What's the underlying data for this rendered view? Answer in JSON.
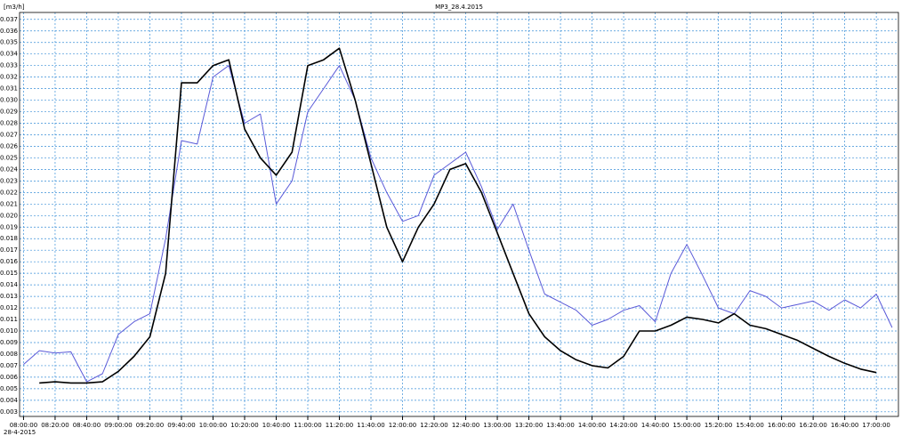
{
  "chart_data": {
    "type": "line",
    "title": "MP3_28.4.2015",
    "y_label": "[m3/h]",
    "date_label": "28-4-2015",
    "x": [
      "08:00:00",
      "08:10:00",
      "08:20:00",
      "08:30:00",
      "08:40:00",
      "08:50:00",
      "09:00:00",
      "09:10:00",
      "09:20:00",
      "09:30:00",
      "09:40:00",
      "09:50:00",
      "10:00:00",
      "10:10:00",
      "10:20:00",
      "10:30:00",
      "10:40:00",
      "10:50:00",
      "11:00:00",
      "11:10:00",
      "11:20:00",
      "11:30:00",
      "11:40:00",
      "11:50:00",
      "12:00:00",
      "12:10:00",
      "12:20:00",
      "12:30:00",
      "12:40:00",
      "12:50:00",
      "13:00:00",
      "13:10:00",
      "13:20:00",
      "13:30:00",
      "13:40:00",
      "13:50:00",
      "14:00:00",
      "14:10:00",
      "14:20:00",
      "14:30:00",
      "14:40:00",
      "14:50:00",
      "15:00:00",
      "15:10:00",
      "15:20:00",
      "15:30:00",
      "15:40:00",
      "15:50:00",
      "16:00:00",
      "16:10:00",
      "16:20:00",
      "16:30:00",
      "16:40:00",
      "16:50:00",
      "17:00:00",
      "17:10:00"
    ],
    "series": [
      {
        "color": "#5a5ad8",
        "values": [
          0.0071,
          0.0083,
          0.0081,
          0.0082,
          0.0056,
          0.0063,
          0.0097,
          0.0108,
          0.0115,
          0.018,
          0.0265,
          0.0262,
          0.032,
          0.033,
          0.028,
          0.0288,
          0.021,
          0.023,
          0.029,
          0.031,
          0.033,
          0.03,
          0.025,
          0.022,
          0.0195,
          0.02,
          0.0235,
          0.0245,
          0.0255,
          0.0225,
          0.0188,
          0.021,
          0.017,
          0.0132,
          0.0125,
          0.0118,
          0.0105,
          0.011,
          0.0118,
          0.0122,
          0.0108,
          0.015,
          0.0175,
          0.0148,
          0.012,
          0.0115,
          0.0135,
          0.013,
          0.012,
          0.0123,
          0.0126,
          0.0118,
          0.0127,
          0.012,
          0.0132,
          0.0103
        ]
      },
      {
        "color": "#000000",
        "values": [
          null,
          0.0055,
          0.0056,
          0.0055,
          0.0055,
          0.0056,
          0.0065,
          0.0078,
          0.0095,
          0.015,
          0.0315,
          0.0315,
          0.033,
          0.0335,
          0.0275,
          0.025,
          0.0235,
          0.0255,
          0.033,
          0.0335,
          0.0345,
          0.03,
          0.0245,
          0.019,
          0.016,
          0.019,
          0.021,
          0.024,
          0.0245,
          0.022,
          0.0185,
          0.015,
          0.0115,
          0.0095,
          0.0083,
          0.0075,
          0.007,
          0.0068,
          0.0078,
          0.01,
          0.01,
          0.0105,
          0.0112,
          0.011,
          0.0107,
          0.0115,
          0.0105,
          0.0102,
          0.0097,
          0.0092,
          0.0085,
          0.0078,
          0.0072,
          0.0067,
          0.0064,
          null
        ]
      }
    ],
    "xlim": [
      "07:57:30",
      "17:14:00"
    ],
    "xticks": [
      "08:00:00",
      "08:20:00",
      "08:40:00",
      "09:00:00",
      "09:20:00",
      "09:40:00",
      "10:00:00",
      "10:20:00",
      "10:40:00",
      "11:00:00",
      "11:20:00",
      "11:40:00",
      "12:00:00",
      "12:20:00",
      "12:40:00",
      "13:00:00",
      "13:20:00",
      "13:40:00",
      "14:00:00",
      "14:20:00",
      "14:40:00",
      "15:00:00",
      "15:20:00",
      "15:40:00",
      "16:00:00",
      "16:20:00",
      "16:40:00",
      "17:00:00"
    ],
    "ylim": [
      0.0026,
      0.0376
    ],
    "yticks": [
      0.003,
      0.004,
      0.005,
      0.006,
      0.007,
      0.008,
      0.009,
      {
        "value": 0.01,
        "label": "0.010"
      },
      0.011,
      0.012,
      0.013,
      0.014,
      0.015,
      0.016,
      0.017,
      0.018,
      0.019,
      {
        "value": 0.02,
        "label": "0.020"
      },
      0.021,
      0.022,
      0.023,
      0.024,
      0.025,
      0.026,
      0.027,
      0.028,
      0.029,
      {
        "value": 0.03,
        "label": "0.030"
      },
      0.031,
      0.032,
      0.033,
      0.034,
      0.035,
      0.036,
      0.037
    ],
    "grid": true
  }
}
